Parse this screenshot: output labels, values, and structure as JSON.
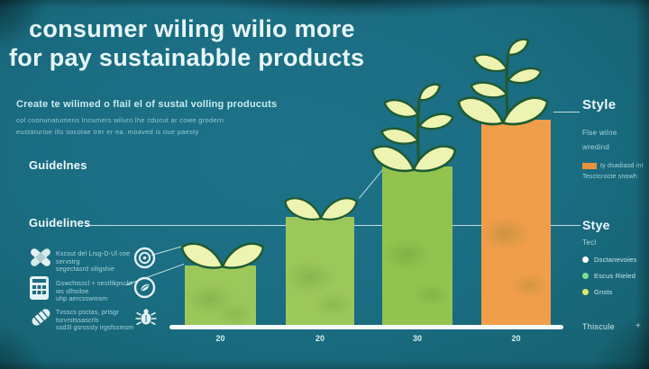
{
  "colors": {
    "background": "#1a6c81",
    "title_text": "#e7f7f9",
    "muted_text": "#9fd0d9",
    "bar_green": "#9cc75a",
    "bar_orange": "#f09e4a",
    "leaf_fill": "#edf3b0",
    "leaf_outline": "#1f5a33",
    "axis": "#f4fbfa",
    "legend_swatch": "#e8923d"
  },
  "title": {
    "line1": "consumer wiling wilio more",
    "line2": "for pay sustainabble products"
  },
  "intro": {
    "heading": "Create te wilimed o flail el of sustal volling producuts",
    "body_line1": "col coonunatumens Incumers wiluro lhe cducut ar cowe grodern",
    "body_line2": "eustaturioe ills socolae trer er ea. moaved is oue paesty"
  },
  "left_panel": {
    "heading_top": "Guidelnes",
    "heading_bottom": "Guidelines",
    "items": [
      {
        "icon": "bandage-icon",
        "line1": "Kscsut del Lrsg-D-Ul coe servstrg",
        "line2": "segectasrd siligshie",
        "right_icon": "target-icon"
      },
      {
        "icon": "calculator-icon",
        "line1": "Gswchtsscl + sestltkpscbt ws sfhsiloe",
        "line2": "uhp aercsswmsm",
        "right_icon": "leaf-circle-icon"
      },
      {
        "icon": "pill-icon",
        "line1": "Tvsscs psctas, prtsgr turvrstssascrls",
        "line2": "ssd3l gsrsssty irgsfssmsm",
        "right_icon": "bug-icon"
      }
    ]
  },
  "chart_data": {
    "type": "bar",
    "categories": [
      "20",
      "20",
      "30",
      "20"
    ],
    "values": [
      25,
      45,
      66,
      85
    ],
    "ylim": [
      0,
      100
    ],
    "bar_colors": [
      "#9cc75a",
      "#9cc75a",
      "#92c34f",
      "#f09e4a"
    ],
    "title": "consumer wiling wilio more for pay sustainabble products",
    "xlabel": "",
    "ylabel": "",
    "grid": false,
    "legend_position": "right",
    "decoration": "plant sprouts grow from the top of each bar"
  },
  "right_panel": {
    "style_heading": "Style",
    "style_line1": "Flse wilne",
    "style_line2": "wredind",
    "legend_label": "ty dsadiasd int",
    "legend_sub": "Tesctcrocte snowh",
    "stye_heading": "Stye",
    "tecl_label": "Tecl",
    "bullets": [
      {
        "label": "Dsctanevoies",
        "color": "#ffffff"
      },
      {
        "label": "Escus Rieled",
        "color": "#7be08f"
      },
      {
        "label": "Gnsts",
        "color": "#d9e96b"
      }
    ],
    "thiscule_label": "Thiscule",
    "plus_label": "+"
  }
}
